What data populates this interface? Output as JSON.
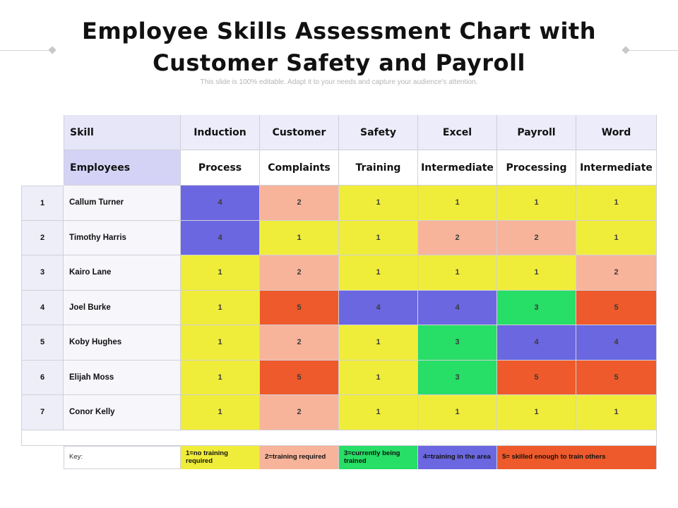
{
  "title_line1": "Employee  Skills Assessment Chart with",
  "title_line2": "Customer Safety and Payroll",
  "subtitle": "This slide is 100% editable. Adapt it to your needs and capture your audience's attention.",
  "header_row1": [
    "Skill",
    "Induction",
    "Customer",
    "Safety",
    "Excel",
    "Payroll",
    "Word"
  ],
  "header_row2": [
    "Employees",
    "Process",
    "Complaints",
    "Training",
    "Intermediate",
    "Processing",
    "Intermediate"
  ],
  "employees": [
    {
      "index": "1",
      "name": "Callum Turner",
      "scores": [
        4,
        2,
        1,
        1,
        1,
        1
      ]
    },
    {
      "index": "2",
      "name": "Timothy Harris",
      "scores": [
        4,
        1,
        1,
        2,
        2,
        1
      ]
    },
    {
      "index": "3",
      "name": "Kairo Lane",
      "scores": [
        1,
        2,
        1,
        1,
        1,
        2
      ]
    },
    {
      "index": "4",
      "name": "Joel Burke",
      "scores": [
        1,
        5,
        4,
        4,
        3,
        5
      ]
    },
    {
      "index": "5",
      "name": "Koby Hughes",
      "scores": [
        1,
        2,
        1,
        3,
        4,
        4
      ]
    },
    {
      "index": "6",
      "name": "Elijah Moss",
      "scores": [
        1,
        5,
        1,
        3,
        5,
        5
      ]
    },
    {
      "index": "7",
      "name": "Conor Kelly",
      "scores": [
        1,
        2,
        1,
        1,
        1,
        1
      ]
    }
  ],
  "score_colors": {
    "1": "#f0ed3a",
    "2": "#f7b49a",
    "3": "#27de66",
    "4": "#6b67e0",
    "5": "#ee5a2b"
  },
  "key": {
    "label": "Key:",
    "items": [
      {
        "text": "1=no training required",
        "color": "#f0ed3a"
      },
      {
        "text": "2=training required",
        "color": "#f7b49a"
      },
      {
        "text": "3=currently being trained",
        "color": "#27de66"
      },
      {
        "text": "4=training in the area",
        "color": "#6b67e0"
      },
      {
        "text": "5= skilled enough to train others",
        "color": "#ee5a2b"
      }
    ]
  }
}
